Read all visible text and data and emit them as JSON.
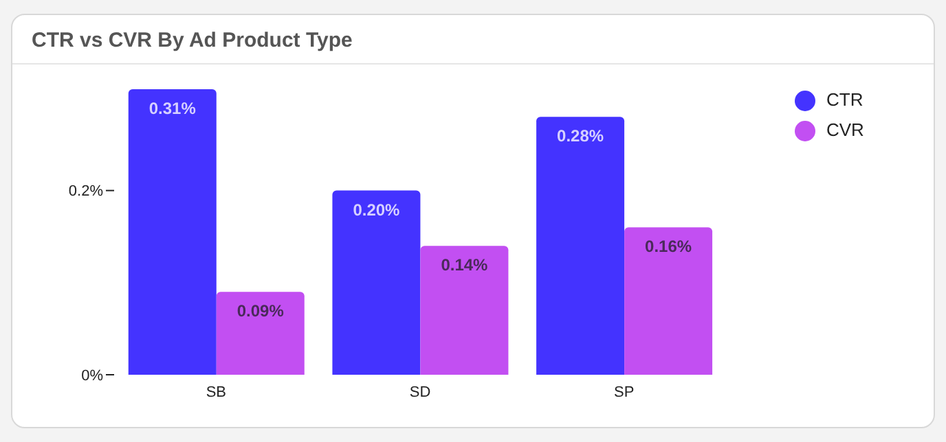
{
  "chart_data": {
    "type": "bar",
    "title": "CTR vs CVR By Ad Product Type",
    "categories": [
      "SB",
      "SD",
      "SP"
    ],
    "series": [
      {
        "name": "CTR",
        "color": "#4433ff",
        "values": [
          0.31,
          0.2,
          0.28
        ],
        "value_labels": [
          "0.31%",
          "0.20%",
          "0.28%"
        ]
      },
      {
        "name": "CVR",
        "color": "#c24ff2",
        "values": [
          0.09,
          0.14,
          0.16
        ],
        "value_labels": [
          "0.09%",
          "0.14%",
          "0.16%"
        ]
      }
    ],
    "ylim": [
      0,
      0.31
    ],
    "yticks": [
      {
        "value": 0,
        "label": "0%"
      },
      {
        "value": 0.2,
        "label": "0.2%"
      }
    ],
    "grid": false,
    "legend": "top right"
  }
}
